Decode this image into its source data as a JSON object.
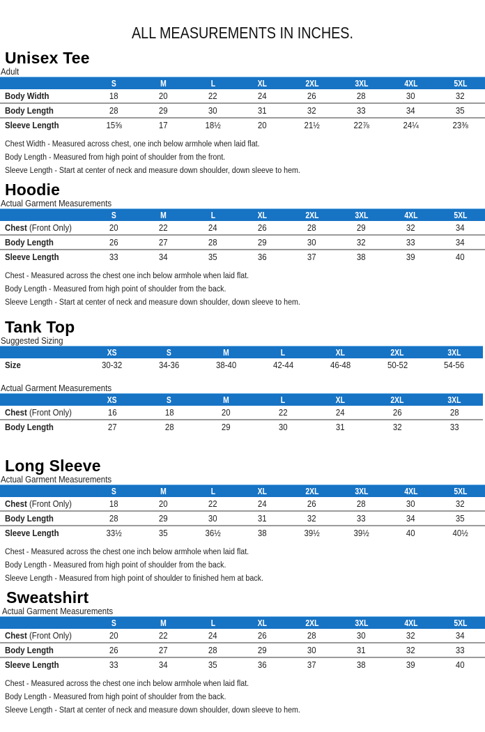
{
  "page": {
    "title": "ALL MEASUREMENTS IN INCHES.",
    "header_color": "#1773c4"
  },
  "unisex_tee": {
    "title": "Unisex Tee",
    "subtitle": "Adult",
    "sizes": [
      "S",
      "M",
      "L",
      "XL",
      "2XL",
      "3XL",
      "4XL",
      "5XL"
    ],
    "rows": [
      {
        "label": "Body Width",
        "label_extra": "",
        "values": [
          "18",
          "20",
          "22",
          "24",
          "26",
          "28",
          "30",
          "32"
        ]
      },
      {
        "label": "Body Length",
        "label_extra": "",
        "values": [
          "28",
          "29",
          "30",
          "31",
          "32",
          "33",
          "34",
          "35"
        ]
      },
      {
        "label": "Sleeve Length",
        "label_extra": "",
        "values": [
          "15⅝",
          "17",
          "18½",
          "20",
          "21½",
          "22⅞",
          "24¼",
          "23⅜"
        ]
      }
    ],
    "notes": [
      "Chest Width - Measured across chest, one inch below armhole when laid flat.",
      "Body Length - Measured from high point of shoulder from the front.",
      "Sleeve Length - Start at center of neck and measure down shoulder, down sleeve to hem."
    ]
  },
  "hoodie": {
    "title": "Hoodie",
    "subtitle": "Actual Garment Measurements",
    "sizes": [
      "S",
      "M",
      "L",
      "XL",
      "2XL",
      "3XL",
      "4XL",
      "5XL"
    ],
    "rows": [
      {
        "label": "Chest",
        "label_extra": " (Front Only)",
        "values": [
          "20",
          "22",
          "24",
          "26",
          "28",
          "29",
          "32",
          "34"
        ]
      },
      {
        "label": "Body Length",
        "label_extra": "",
        "values": [
          "26",
          "27",
          "28",
          "29",
          "30",
          "32",
          "33",
          "34"
        ]
      },
      {
        "label": "Sleeve Length",
        "label_extra": "",
        "values": [
          "33",
          "34",
          "35",
          "36",
          "37",
          "38",
          "39",
          "40"
        ]
      }
    ],
    "notes": [
      "Chest - Measured across the chest one inch below armhole when laid flat.",
      "Body Length - Measured from high point of shoulder from the back.",
      "Sleeve Length - Start at center of neck and measure down shoulder, down sleeve to hem."
    ]
  },
  "tank_top": {
    "title": "Tank Top",
    "suggested": {
      "subtitle": "Suggested Sizing",
      "sizes": [
        "XS",
        "S",
        "M",
        "L",
        "XL",
        "2XL",
        "3XL"
      ],
      "rows": [
        {
          "label": "Size",
          "label_extra": "",
          "values": [
            "30-32",
            "34-36",
            "38-40",
            "42-44",
            "46-48",
            "50-52",
            "54-56"
          ]
        }
      ]
    },
    "actual": {
      "subtitle": "Actual Garment Measurements",
      "sizes": [
        "XS",
        "S",
        "M",
        "L",
        "XL",
        "2XL",
        "3XL"
      ],
      "rows": [
        {
          "label": "Chest",
          "label_extra": " (Front Only)",
          "values": [
            "16",
            "18",
            "20",
            "22",
            "24",
            "26",
            "28"
          ]
        },
        {
          "label": "Body Length",
          "label_extra": "",
          "values": [
            "27",
            "28",
            "29",
            "30",
            "31",
            "32",
            "33"
          ]
        }
      ]
    }
  },
  "long_sleeve": {
    "title": "Long Sleeve",
    "subtitle": "Actual Garment Measurements",
    "sizes": [
      "S",
      "M",
      "L",
      "XL",
      "2XL",
      "3XL",
      "4XL",
      "5XL"
    ],
    "rows": [
      {
        "label": "Chest",
        "label_extra": " (Front Only)",
        "values": [
          "18",
          "20",
          "22",
          "24",
          "26",
          "28",
          "30",
          "32"
        ]
      },
      {
        "label": "Body Length",
        "label_extra": "",
        "values": [
          "28",
          "29",
          "30",
          "31",
          "32",
          "33",
          "34",
          "35"
        ]
      },
      {
        "label": "Sleeve Length",
        "label_extra": "",
        "values": [
          "33½",
          "35",
          "36½",
          "38",
          "39½",
          "39½",
          "40",
          "40½"
        ]
      }
    ],
    "notes": [
      "Chest - Measured across the chest one inch below armhole when laid flat.",
      "Body Length - Measured from high point of shoulder from the back.",
      "Sleeve Length - Measured from high point of shoulder to finished hem at back."
    ]
  },
  "sweatshirt": {
    "title": "Sweatshirt",
    "subtitle": "Actual Garment Measurements",
    "sizes": [
      "S",
      "M",
      "L",
      "XL",
      "2XL",
      "3XL",
      "4XL",
      "5XL"
    ],
    "rows": [
      {
        "label": "Chest",
        "label_extra": " (Front Only)",
        "values": [
          "20",
          "22",
          "24",
          "26",
          "28",
          "30",
          "32",
          "34"
        ]
      },
      {
        "label": "Body Length",
        "label_extra": "",
        "values": [
          "26",
          "27",
          "28",
          "29",
          "30",
          "31",
          "32",
          "33"
        ]
      },
      {
        "label": "Sleeve Length",
        "label_extra": "",
        "values": [
          "33",
          "34",
          "35",
          "36",
          "37",
          "38",
          "39",
          "40"
        ]
      }
    ],
    "notes": [
      "Chest - Measured across the chest one inch below armhole when laid flat.",
      "Body Length - Measured from high point of shoulder from the back.",
      "Sleeve Length - Start at center of neck and measure down shoulder, down sleeve to hem."
    ]
  }
}
